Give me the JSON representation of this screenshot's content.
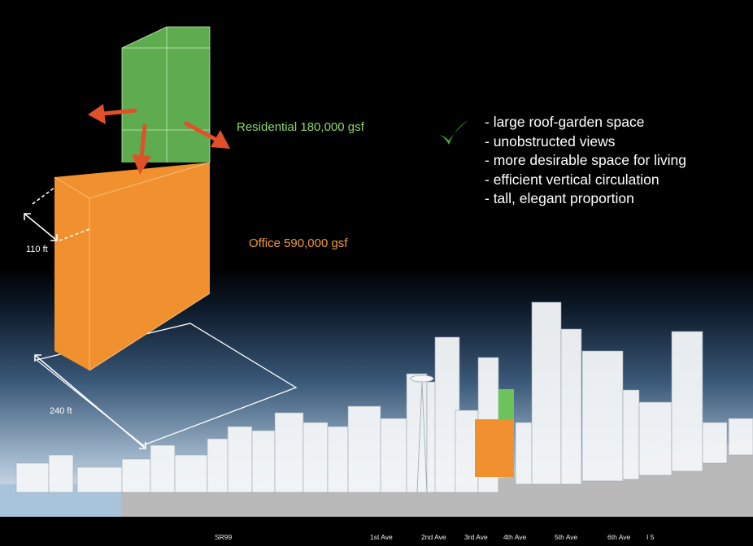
{
  "labels": {
    "residential": "Residential 180,000 gsf",
    "office": "Office 590,000 gsf",
    "height_dim": "110 ft",
    "width_dim": "240 ft"
  },
  "benefits": [
    "- large roof-garden space",
    "- unobstructed views",
    "- more desirable space for living",
    "- efficient vertical circulation",
    "- tall, elegant proportion"
  ],
  "streets": [
    "SR99",
    "1st Ave",
    "2nd Ave",
    "3rd Ave",
    "4th Ave",
    "5th Ave",
    "6th Ave",
    "I 5"
  ],
  "colors": {
    "office": "#f0902f",
    "residential": "#6cc35a",
    "arrow": "#e2502a",
    "check": "#4caf3a",
    "residential_text": "#8fd66a",
    "office_text": "#f39a3a"
  },
  "icons": [
    "check-icon",
    "direction-arrow-icon",
    "dimension-arrow-icon"
  ]
}
